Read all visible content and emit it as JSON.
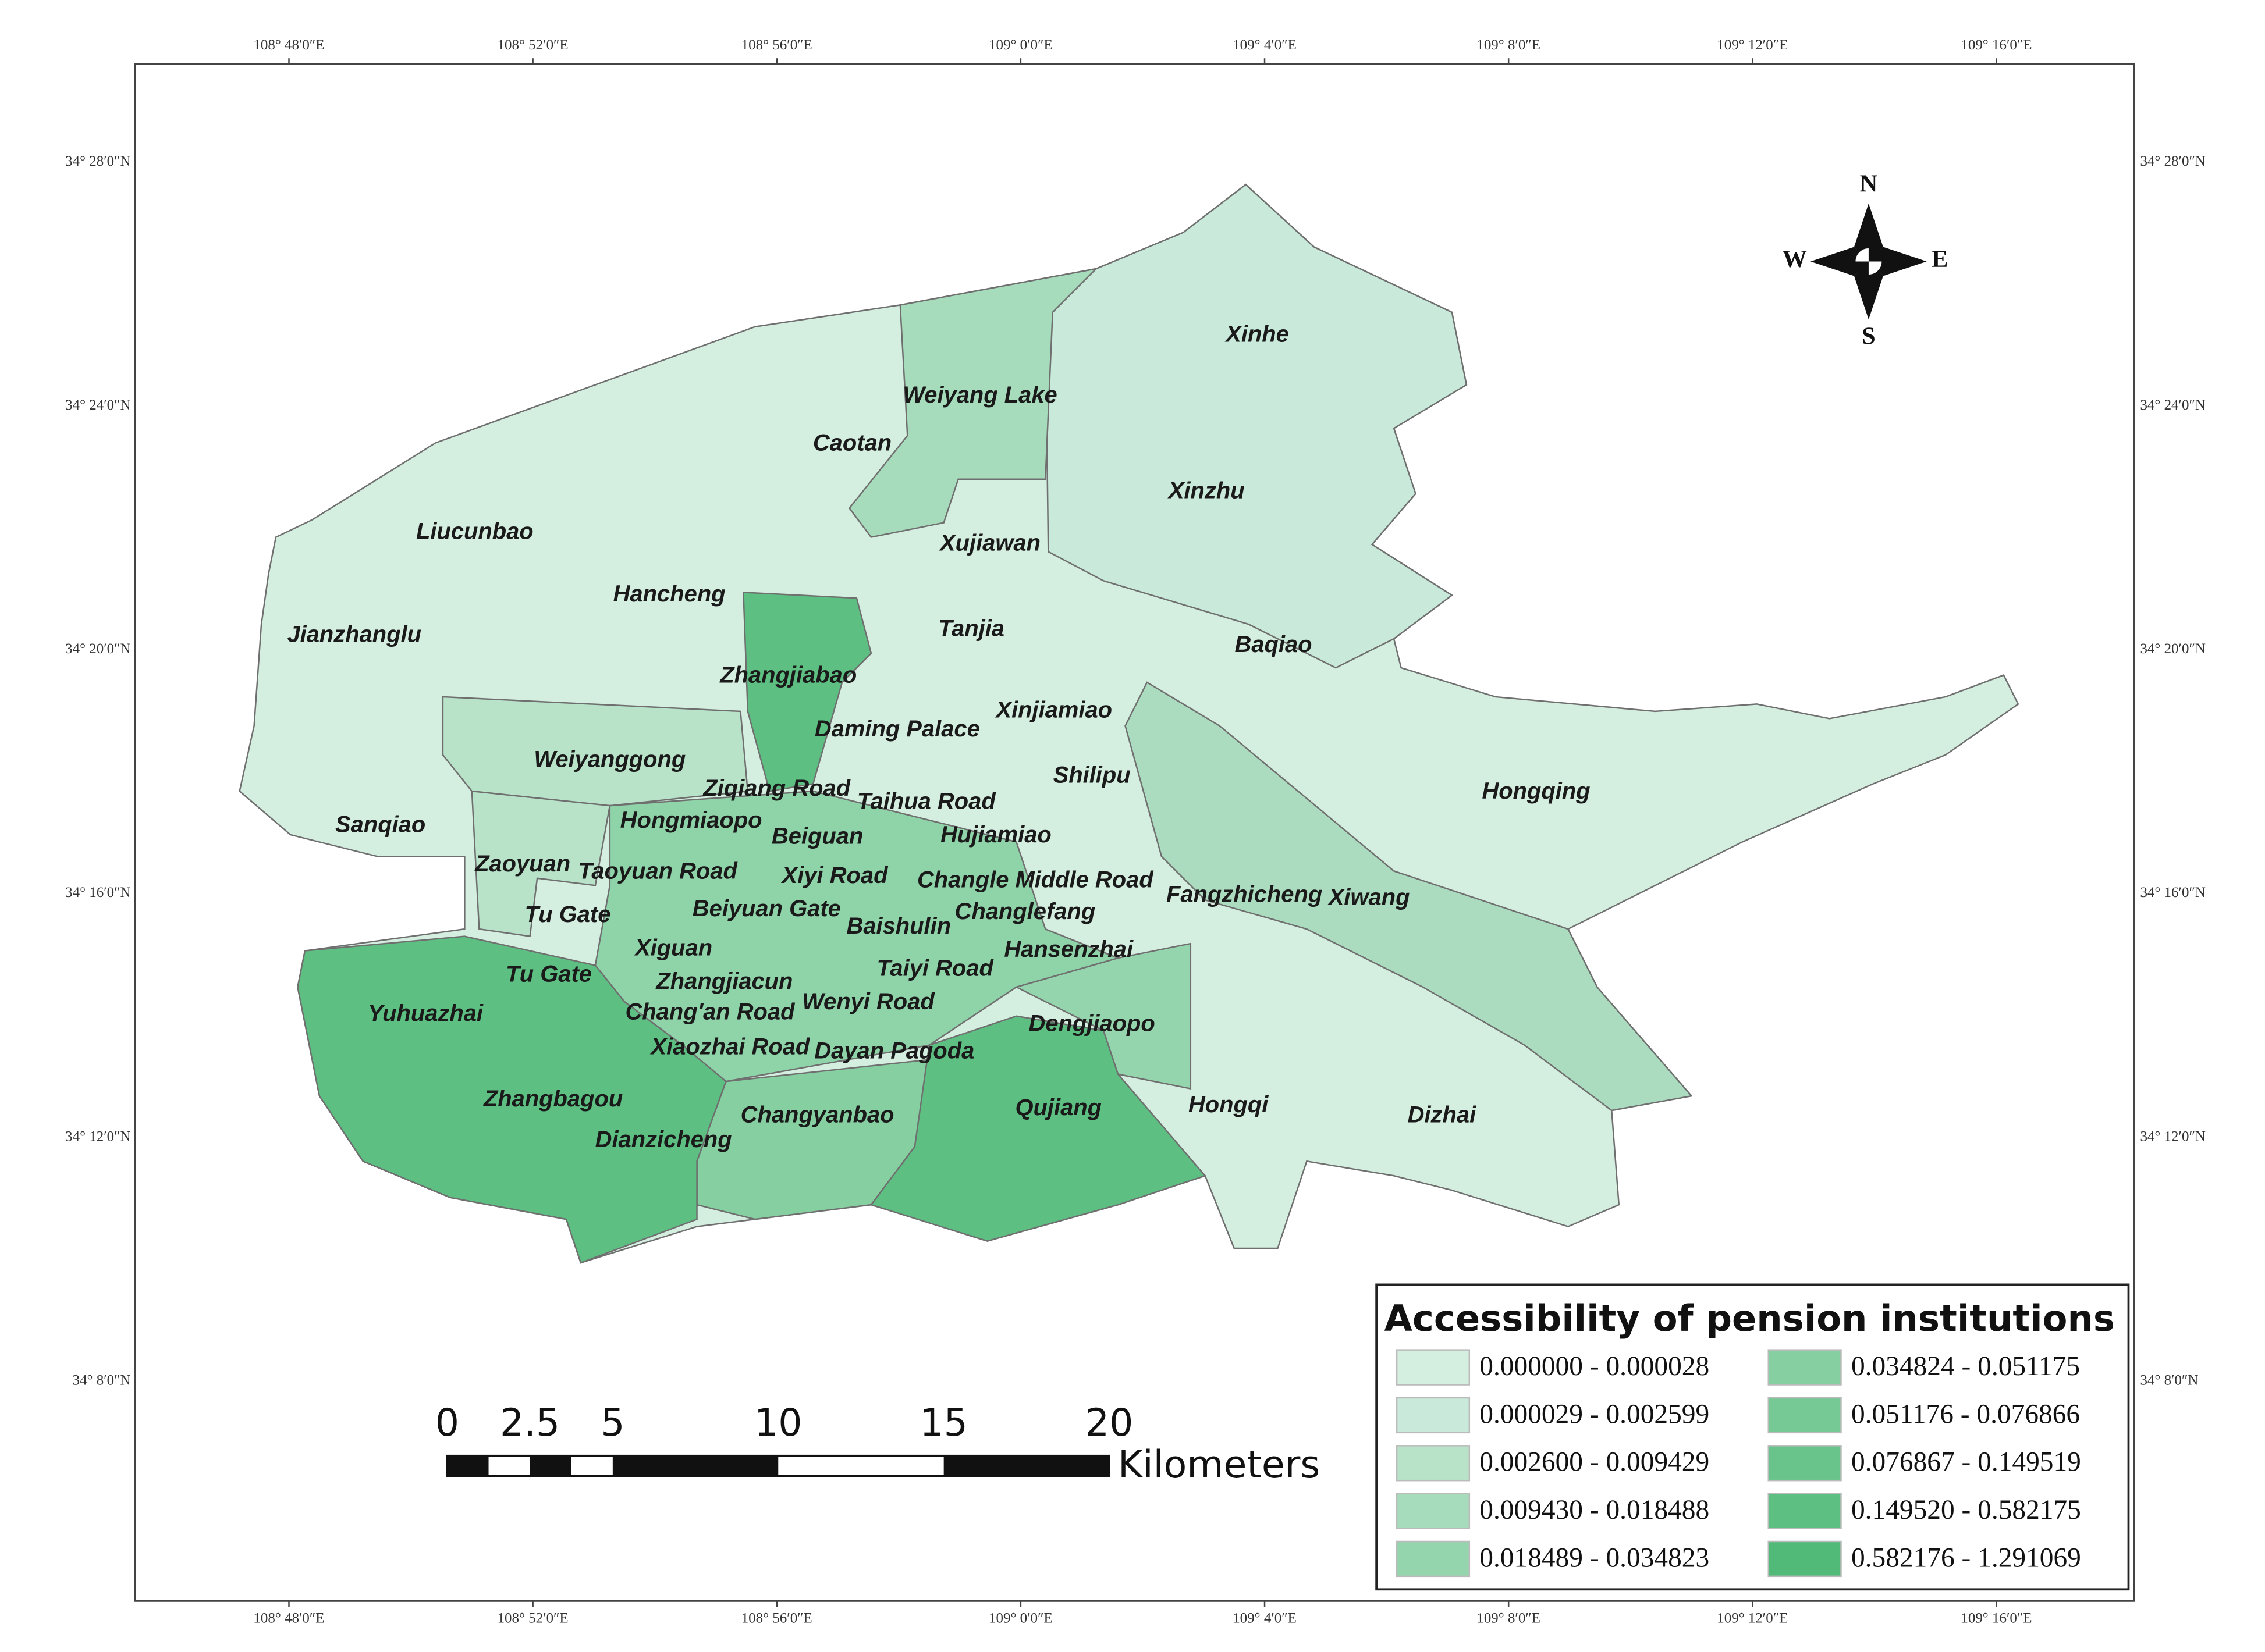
{
  "x_ticks": [
    "108° 48′0″E",
    "108° 52′0″E",
    "108° 56′0″E",
    "109° 0′0″E",
    "109° 4′0″E",
    "109° 8′0″E",
    "109° 12′0″E",
    "109° 16′0″E"
  ],
  "y_ticks": [
    "34° 28′0″N",
    "34° 24′0″N",
    "34° 20′0″N",
    "34° 16′0″N",
    "34° 12′0″N",
    "34° 8′0″N"
  ],
  "compass": {
    "n": "N",
    "s": "S",
    "w": "W",
    "e": "E"
  },
  "districts": [
    "Xinhe",
    "Weiyang Lake",
    "Caotan",
    "Xinzhu",
    "Liucunbao",
    "Xujiawan",
    "Hancheng",
    "Tanjia",
    "Jianzhanglu",
    "Baqiao",
    "Zhangjiabao",
    "Xinjiamiao",
    "Daming Palace",
    "Weiyanggong",
    "Shilipu",
    "Ziqiang Road",
    "Taihua Road",
    "Hongqing",
    "Hongmiaopo",
    "Sanqiao",
    "Beiguan",
    "Hujiamiao",
    "Zaoyuan",
    "Taoyuan Road",
    "Xiyi Road",
    "Changle Middle Road",
    "Fangzhicheng",
    "Xiwang",
    "Tu Gate",
    "Beiyuan Gate",
    "Baishulin",
    "Changlefang",
    "Xiguan",
    "Hansenzhai",
    "Tu Gate",
    "Taiyi Road",
    "Zhangjiacun",
    "Yuhuazhai",
    "Chang'an Road",
    "Wenyi Road",
    "Dengjiaopo",
    "Xiaozhai Road",
    "Dayan Pagoda",
    "Zhangbagou",
    "Changyanbao",
    "Qujiang",
    "Hongqi",
    "Dizhai",
    "Dianzicheng"
  ],
  "legend": {
    "title": "Accessibility of pension institutions",
    "items": [
      {
        "label": "0.000000 - 0.000028",
        "color": "#d4eee0"
      },
      {
        "label": "0.000029 - 0.002599",
        "color": "#c9eada"
      },
      {
        "label": "0.002600 - 0.009429",
        "color": "#b8e3c9"
      },
      {
        "label": "0.009430 - 0.018488",
        "color": "#a6dcbb"
      },
      {
        "label": "0.018489 - 0.034823",
        "color": "#95d5ad"
      },
      {
        "label": "0.034824 - 0.051175",
        "color": "#85cfa1"
      },
      {
        "label": "0.051176 - 0.076866",
        "color": "#76c995"
      },
      {
        "label": "0.076867 - 0.149519",
        "color": "#69c48b"
      },
      {
        "label": "0.149520 - 0.582175",
        "color": "#5dbf82"
      },
      {
        "label": "0.582176 - 1.291069",
        "color": "#52ba79"
      }
    ]
  },
  "scale_bar": {
    "ticks": [
      "0",
      "2.5",
      "5",
      "10",
      "15",
      "20"
    ],
    "unit": "Kilometers"
  }
}
